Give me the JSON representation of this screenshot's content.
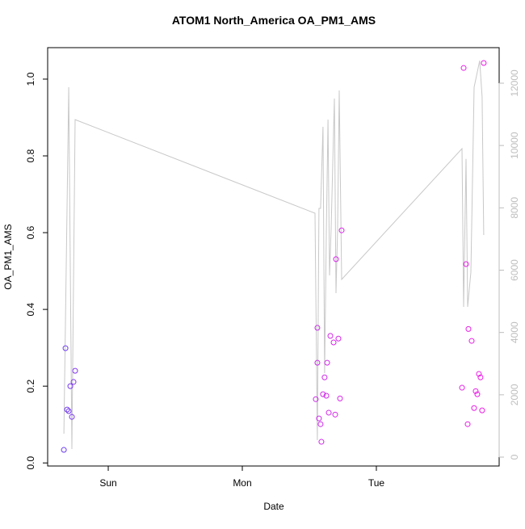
{
  "chart_data": {
    "type": "scatter",
    "title": "ATOM1 North_America OA_PM1_AMS",
    "x_label": "Date",
    "y_label": "OA_PM1_AMS",
    "xlim": [
      -0.452,
      2.916
    ],
    "xticks": [
      {
        "value": 0,
        "label": "Sun"
      },
      {
        "value": 1,
        "label": "Mon"
      },
      {
        "value": 2,
        "label": "Tue"
      }
    ],
    "ylim": [
      -0.008,
      1.082
    ],
    "yticks": [
      {
        "value": 0,
        "label": "0.0"
      },
      0.2,
      0.4,
      0.6,
      0.8,
      {
        "value": 1,
        "label": "1.0"
      }
    ],
    "y2lim": [
      -285,
      13140
    ],
    "y2ticks": [
      0,
      2000,
      4000,
      6000,
      8000,
      10000,
      12000
    ],
    "y2_color": "#bebebe",
    "series": [
      {
        "kind": "points",
        "x": [
          -0.331,
          -0.319,
          -0.307,
          -0.295,
          -0.283,
          -0.271,
          -0.259,
          -0.247,
          1.548,
          1.56,
          1.56,
          1.572,
          1.584,
          1.59,
          1.602,
          1.614,
          1.627,
          1.633,
          1.645,
          1.657,
          1.681,
          1.693,
          1.699,
          1.717,
          1.729,
          1.741,
          2.639,
          2.651,
          2.669,
          2.681,
          2.687,
          2.711,
          2.729,
          2.741,
          2.753,
          2.765,
          2.777,
          2.789,
          2.801
        ],
        "values": [
          0.034,
          0.299,
          0.139,
          0.135,
          0.2,
          0.12,
          0.211,
          0.24,
          0.166,
          0.352,
          0.261,
          0.116,
          0.101,
          0.055,
          0.179,
          0.223,
          0.175,
          0.261,
          0.131,
          0.331,
          0.314,
          0.126,
          0.531,
          0.324,
          0.168,
          0.606,
          0.196,
          1.029,
          0.518,
          0.101,
          0.349,
          0.318,
          0.143,
          0.187,
          0.179,
          0.232,
          0.223,
          0.137,
          1.042
        ],
        "colors": [
          "#6a3df0",
          "#6e3cf0",
          "#713bf0",
          "#753af0",
          "#7839f0",
          "#7c38f0",
          "#7f37f0",
          "#8336f0",
          "#c82be8",
          "#c92be8",
          "#ca2be8",
          "#cb2ae8",
          "#cc2ae8",
          "#cd2ae8",
          "#ce29e8",
          "#cf29e8",
          "#d029e8",
          "#d128e8",
          "#d228e8",
          "#d328e8",
          "#d427e8",
          "#d527e8",
          "#d627e8",
          "#d726e8",
          "#d826e8",
          "#d926e8",
          "#e620e6",
          "#e620e6",
          "#e71fe6",
          "#e71fe6",
          "#e81ee6",
          "#e81ee6",
          "#e91de6",
          "#e91de6",
          "#ea1ce6",
          "#ea1ce6",
          "#eb1be6",
          "#eb1be6",
          "#ec1ae6"
        ]
      },
      {
        "kind": "line",
        "axis": "y2",
        "color": "#c8c8c8",
        "x": [
          -0.331,
          -0.295,
          -0.271,
          -0.247,
          1.542,
          1.56,
          1.572,
          1.584,
          1.602,
          1.614,
          1.627,
          1.639,
          1.651,
          1.663,
          1.687,
          1.699,
          1.711,
          1.723,
          1.741,
          2.639,
          2.651,
          2.669,
          2.681,
          2.705,
          2.729,
          2.771,
          2.789,
          2.801
        ],
        "values": [
          752,
          11869,
          259,
          10831,
          7828,
          544,
          7983,
          7983,
          10600,
          2696,
          7335,
          10831,
          5832,
          7335,
          11507,
          5261,
          7335,
          11766,
          5702,
          9901,
          4821,
          9571,
          4821,
          5936,
          11869,
          12724,
          11558,
          7128
        ]
      }
    ]
  }
}
